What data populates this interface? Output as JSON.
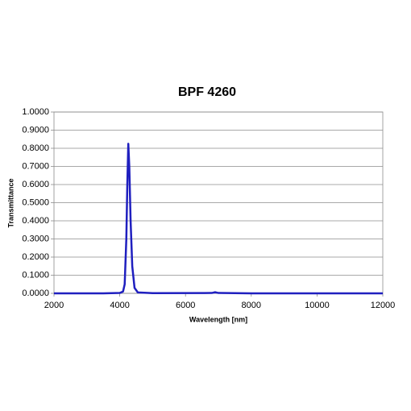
{
  "chart_data": {
    "type": "line",
    "title": "BPF 4260",
    "x_label": "Wavelength [nm]",
    "y_label": "Transmittance",
    "x": [
      2000,
      3500,
      4000,
      4100,
      4150,
      4200,
      4230,
      4260,
      4290,
      4330,
      4380,
      4450,
      4550,
      5000,
      6800,
      6900,
      7000,
      8000,
      12000
    ],
    "series": [
      {
        "name": "BPF 4260",
        "color": "#1f1fbf",
        "values": [
          0,
          0,
          0.002,
          0.01,
          0.05,
          0.3,
          0.6,
          0.825,
          0.7,
          0.4,
          0.15,
          0.03,
          0.005,
          0.001,
          0.002,
          0.006,
          0.002,
          0,
          0
        ]
      }
    ],
    "xlim": [
      2000,
      12000
    ],
    "xticks": [
      2000,
      4000,
      6000,
      8000,
      10000,
      12000
    ],
    "ylim": [
      0,
      1
    ],
    "yticks": [
      {
        "value": 0,
        "label": "0.0000"
      },
      {
        "value": 0.1,
        "label": "0.1000"
      },
      {
        "value": 0.2,
        "label": "0.2000"
      },
      {
        "value": 0.3,
        "label": "0.3000"
      },
      {
        "value": 0.4,
        "label": "0.4000"
      },
      {
        "value": 0.5,
        "label": "0.5000"
      },
      {
        "value": 0.6,
        "label": "0.6000"
      },
      {
        "value": 0.7,
        "label": "0.7000"
      },
      {
        "value": 0.8,
        "label": "0.8000"
      },
      {
        "value": 0.9,
        "label": "0.9000"
      },
      {
        "value": 1,
        "label": "1.0000"
      }
    ],
    "grid": true
  }
}
